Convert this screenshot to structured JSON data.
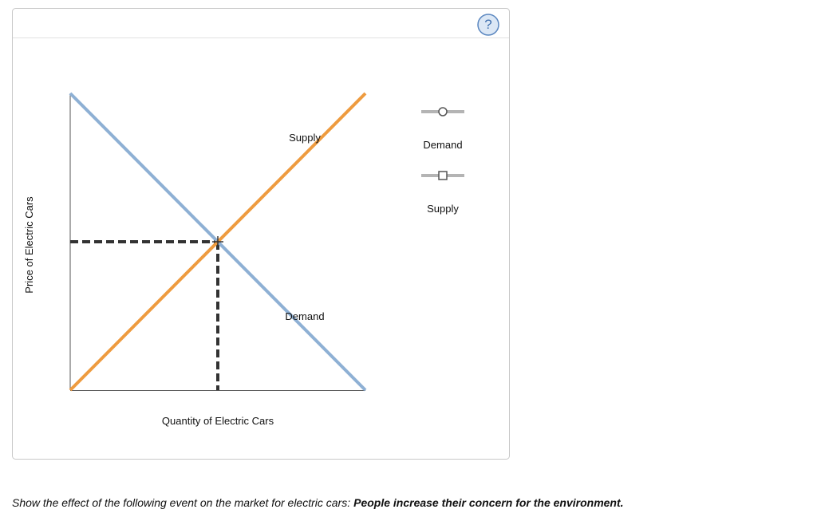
{
  "help_button": {
    "label": "?"
  },
  "graph": {
    "y_axis_label": "Price of Electric Cars",
    "x_axis_label": "Quantity of Electric Cars",
    "curves": [
      {
        "label": "Supply"
      },
      {
        "label": "Demand"
      }
    ]
  },
  "tools": [
    {
      "label": "Demand"
    },
    {
      "label": "Supply"
    }
  ],
  "instruction": {
    "text": "Show the effect of the following event on the market for electric cars:",
    "event": "People increase their concern for the environment."
  }
}
